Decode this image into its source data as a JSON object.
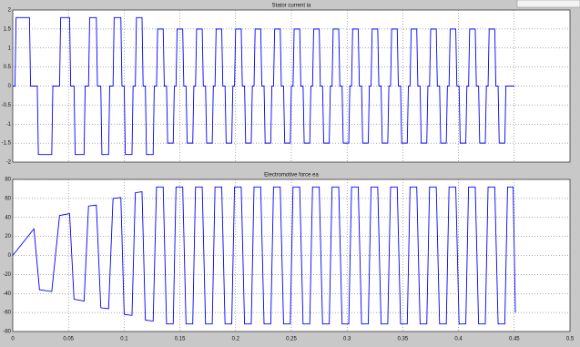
{
  "chart_data": [
    {
      "type": "line",
      "title": "Stator current ia",
      "color": "#0000ff",
      "grid": true,
      "x_tick_labels": false,
      "xlim": [
        0,
        0.5
      ],
      "xticks": [
        0,
        0.05,
        0.1,
        0.15,
        0.2,
        0.25,
        0.3,
        0.35,
        0.4,
        0.45,
        0.5
      ],
      "ylim": [
        -2,
        2
      ],
      "yticks": [
        -2,
        -1.5,
        -1,
        -0.5,
        0,
        0.5,
        1,
        1.5,
        2
      ],
      "x": [
        0,
        0.002,
        0.003,
        0.015,
        0.016,
        0.022,
        0.023,
        0.035,
        0.036,
        0.042,
        0.043,
        0.051,
        0.052,
        0.055,
        0.056,
        0.064,
        0.065,
        0.068,
        0.069,
        0.075,
        0.076,
        0.079,
        0.08,
        0.086,
        0.087,
        0.09,
        0.091,
        0.097,
        0.098,
        0.1,
        0.101,
        0.107,
        0.108,
        0.11,
        0.111,
        0.116,
        0.117,
        0.119,
        0.12,
        0.126,
        0.127,
        0.129,
        0.13,
        0.135,
        0.136,
        0.138,
        0.139,
        0.144,
        0.145,
        0.1465,
        0.1475,
        0.1525,
        0.1535,
        0.1555,
        0.1565,
        0.1615,
        0.1625,
        0.164,
        0.165,
        0.17,
        0.171,
        0.173,
        0.174,
        0.179,
        0.18,
        0.1815,
        0.1825,
        0.1875,
        0.1885,
        0.1905,
        0.1915,
        0.1965,
        0.1975,
        0.199,
        0.2,
        0.205,
        0.206,
        0.208,
        0.209,
        0.214,
        0.215,
        0.2165,
        0.2175,
        0.2225,
        0.2235,
        0.2255,
        0.2265,
        0.2315,
        0.2325,
        0.234,
        0.235,
        0.24,
        0.241,
        0.243,
        0.244,
        0.249,
        0.25,
        0.2515,
        0.2525,
        0.2575,
        0.2585,
        0.2605,
        0.2615,
        0.2665,
        0.2675,
        0.269,
        0.27,
        0.275,
        0.276,
        0.278,
        0.279,
        0.284,
        0.285,
        0.2865,
        0.2875,
        0.2925,
        0.2935,
        0.2955,
        0.2965,
        0.3015,
        0.3025,
        0.304,
        0.305,
        0.31,
        0.311,
        0.313,
        0.314,
        0.319,
        0.32,
        0.3215,
        0.3225,
        0.3275,
        0.3285,
        0.3305,
        0.3315,
        0.3365,
        0.3375,
        0.339,
        0.34,
        0.345,
        0.346,
        0.348,
        0.349,
        0.354,
        0.355,
        0.3565,
        0.3575,
        0.3625,
        0.3635,
        0.3655,
        0.3665,
        0.3715,
        0.3725,
        0.374,
        0.375,
        0.38,
        0.381,
        0.383,
        0.384,
        0.389,
        0.39,
        0.3915,
        0.3925,
        0.3975,
        0.3985,
        0.4005,
        0.4015,
        0.4065,
        0.4075,
        0.409,
        0.41,
        0.415,
        0.416,
        0.418,
        0.419,
        0.424,
        0.425,
        0.4265,
        0.4275,
        0.4325,
        0.4335,
        0.4355,
        0.4365,
        0.4415,
        0.4425,
        0.45
      ],
      "values": [
        0,
        0,
        1.8,
        1.8,
        0,
        0,
        -1.8,
        -1.8,
        0,
        0,
        1.8,
        1.8,
        0,
        0,
        -1.8,
        -1.8,
        0,
        0,
        1.8,
        1.8,
        0,
        0,
        -1.8,
        -1.8,
        0,
        0,
        1.8,
        1.8,
        0,
        0,
        -1.8,
        -1.8,
        0,
        0,
        1.8,
        1.8,
        0,
        0,
        -1.8,
        -1.8,
        0,
        0,
        1.5,
        1.5,
        0,
        0,
        -1.5,
        -1.5,
        0,
        0,
        1.5,
        1.5,
        0,
        0,
        -1.5,
        -1.5,
        0,
        0,
        1.5,
        1.5,
        0,
        0,
        -1.5,
        -1.5,
        0,
        0,
        1.5,
        1.5,
        0,
        0,
        -1.5,
        -1.5,
        0,
        0,
        1.5,
        1.5,
        0,
        0,
        -1.5,
        -1.5,
        0,
        0,
        1.5,
        1.5,
        0,
        0,
        -1.5,
        -1.5,
        0,
        0,
        1.5,
        1.5,
        0,
        0,
        -1.5,
        -1.5,
        0,
        0,
        1.5,
        1.5,
        0,
        0,
        -1.5,
        -1.5,
        0,
        0,
        1.5,
        1.5,
        0,
        0,
        -1.5,
        -1.5,
        0,
        0,
        1.5,
        1.5,
        0,
        0,
        -1.5,
        -1.5,
        0,
        0,
        1.5,
        1.5,
        0,
        0,
        -1.5,
        -1.5,
        0,
        0,
        1.5,
        1.5,
        0,
        0,
        -1.5,
        -1.5,
        0,
        0,
        1.5,
        1.5,
        0,
        0,
        -1.5,
        -1.5,
        0,
        0,
        1.5,
        1.5,
        0,
        0,
        -1.5,
        -1.5,
        0,
        0,
        1.5,
        1.5,
        0,
        0,
        -1.5,
        -1.5,
        0,
        0,
        1.5,
        1.5,
        0,
        0,
        -1.5,
        -1.5,
        0,
        0,
        1.5,
        1.5,
        0,
        0,
        -1.5,
        -1.5,
        0,
        0,
        1.5,
        1.5,
        0,
        0,
        -1.5,
        -1.5,
        0,
        0
      ]
    },
    {
      "type": "line",
      "title": "Electromotive force ea",
      "color": "#0000ff",
      "grid": true,
      "x_tick_labels": true,
      "xlim": [
        0,
        0.5
      ],
      "xticks": [
        0,
        0.05,
        0.1,
        0.15,
        0.2,
        0.25,
        0.3,
        0.35,
        0.4,
        0.45,
        0.5
      ],
      "ylim": [
        -80,
        80
      ],
      "yticks": [
        -80,
        -60,
        -40,
        -20,
        0,
        20,
        40,
        60,
        80
      ],
      "x": [
        0,
        0.019,
        0.024,
        0.035,
        0.042,
        0.051,
        0.055,
        0.064,
        0.068,
        0.075,
        0.079,
        0.086,
        0.09,
        0.097,
        0.1,
        0.107,
        0.11,
        0.116,
        0.119,
        0.126,
        0.129,
        0.135,
        0.138,
        0.144,
        0.1465,
        0.1525,
        0.1555,
        0.1615,
        0.164,
        0.17,
        0.173,
        0.179,
        0.1815,
        0.1875,
        0.1905,
        0.1965,
        0.199,
        0.205,
        0.208,
        0.214,
        0.2165,
        0.2225,
        0.2255,
        0.2315,
        0.234,
        0.24,
        0.243,
        0.249,
        0.2515,
        0.2575,
        0.2605,
        0.2665,
        0.269,
        0.275,
        0.278,
        0.284,
        0.2865,
        0.2925,
        0.2955,
        0.3015,
        0.304,
        0.31,
        0.313,
        0.319,
        0.3215,
        0.3275,
        0.3305,
        0.3365,
        0.339,
        0.345,
        0.348,
        0.354,
        0.3565,
        0.3625,
        0.3655,
        0.3715,
        0.374,
        0.38,
        0.383,
        0.389,
        0.3915,
        0.3975,
        0.4005,
        0.4065,
        0.409,
        0.415,
        0.418,
        0.424,
        0.4265,
        0.4325,
        0.4355,
        0.4415,
        0.444,
        0.449,
        0.451
      ],
      "values": [
        0,
        28,
        -36,
        -38,
        42,
        44,
        -46,
        -48,
        52,
        53,
        -55,
        -56,
        60,
        61,
        -62,
        -63,
        66,
        67,
        -68,
        -69,
        72,
        72,
        -72,
        -72,
        72,
        72,
        -72,
        -72,
        72,
        72,
        -72,
        -72,
        72,
        72,
        -72,
        -72,
        72,
        72,
        -72,
        -72,
        72,
        72,
        -72,
        -72,
        72,
        72,
        -72,
        -72,
        72,
        72,
        -72,
        -72,
        72,
        72,
        -72,
        -72,
        72,
        72,
        -72,
        -72,
        72,
        72,
        -72,
        -72,
        72,
        72,
        -72,
        -72,
        72,
        72,
        -72,
        -72,
        72,
        72,
        -72,
        -72,
        72,
        72,
        -72,
        -72,
        72,
        72,
        -72,
        -72,
        72,
        72,
        -72,
        -72,
        72,
        72,
        -72,
        -72,
        72,
        72,
        -60
      ]
    }
  ]
}
